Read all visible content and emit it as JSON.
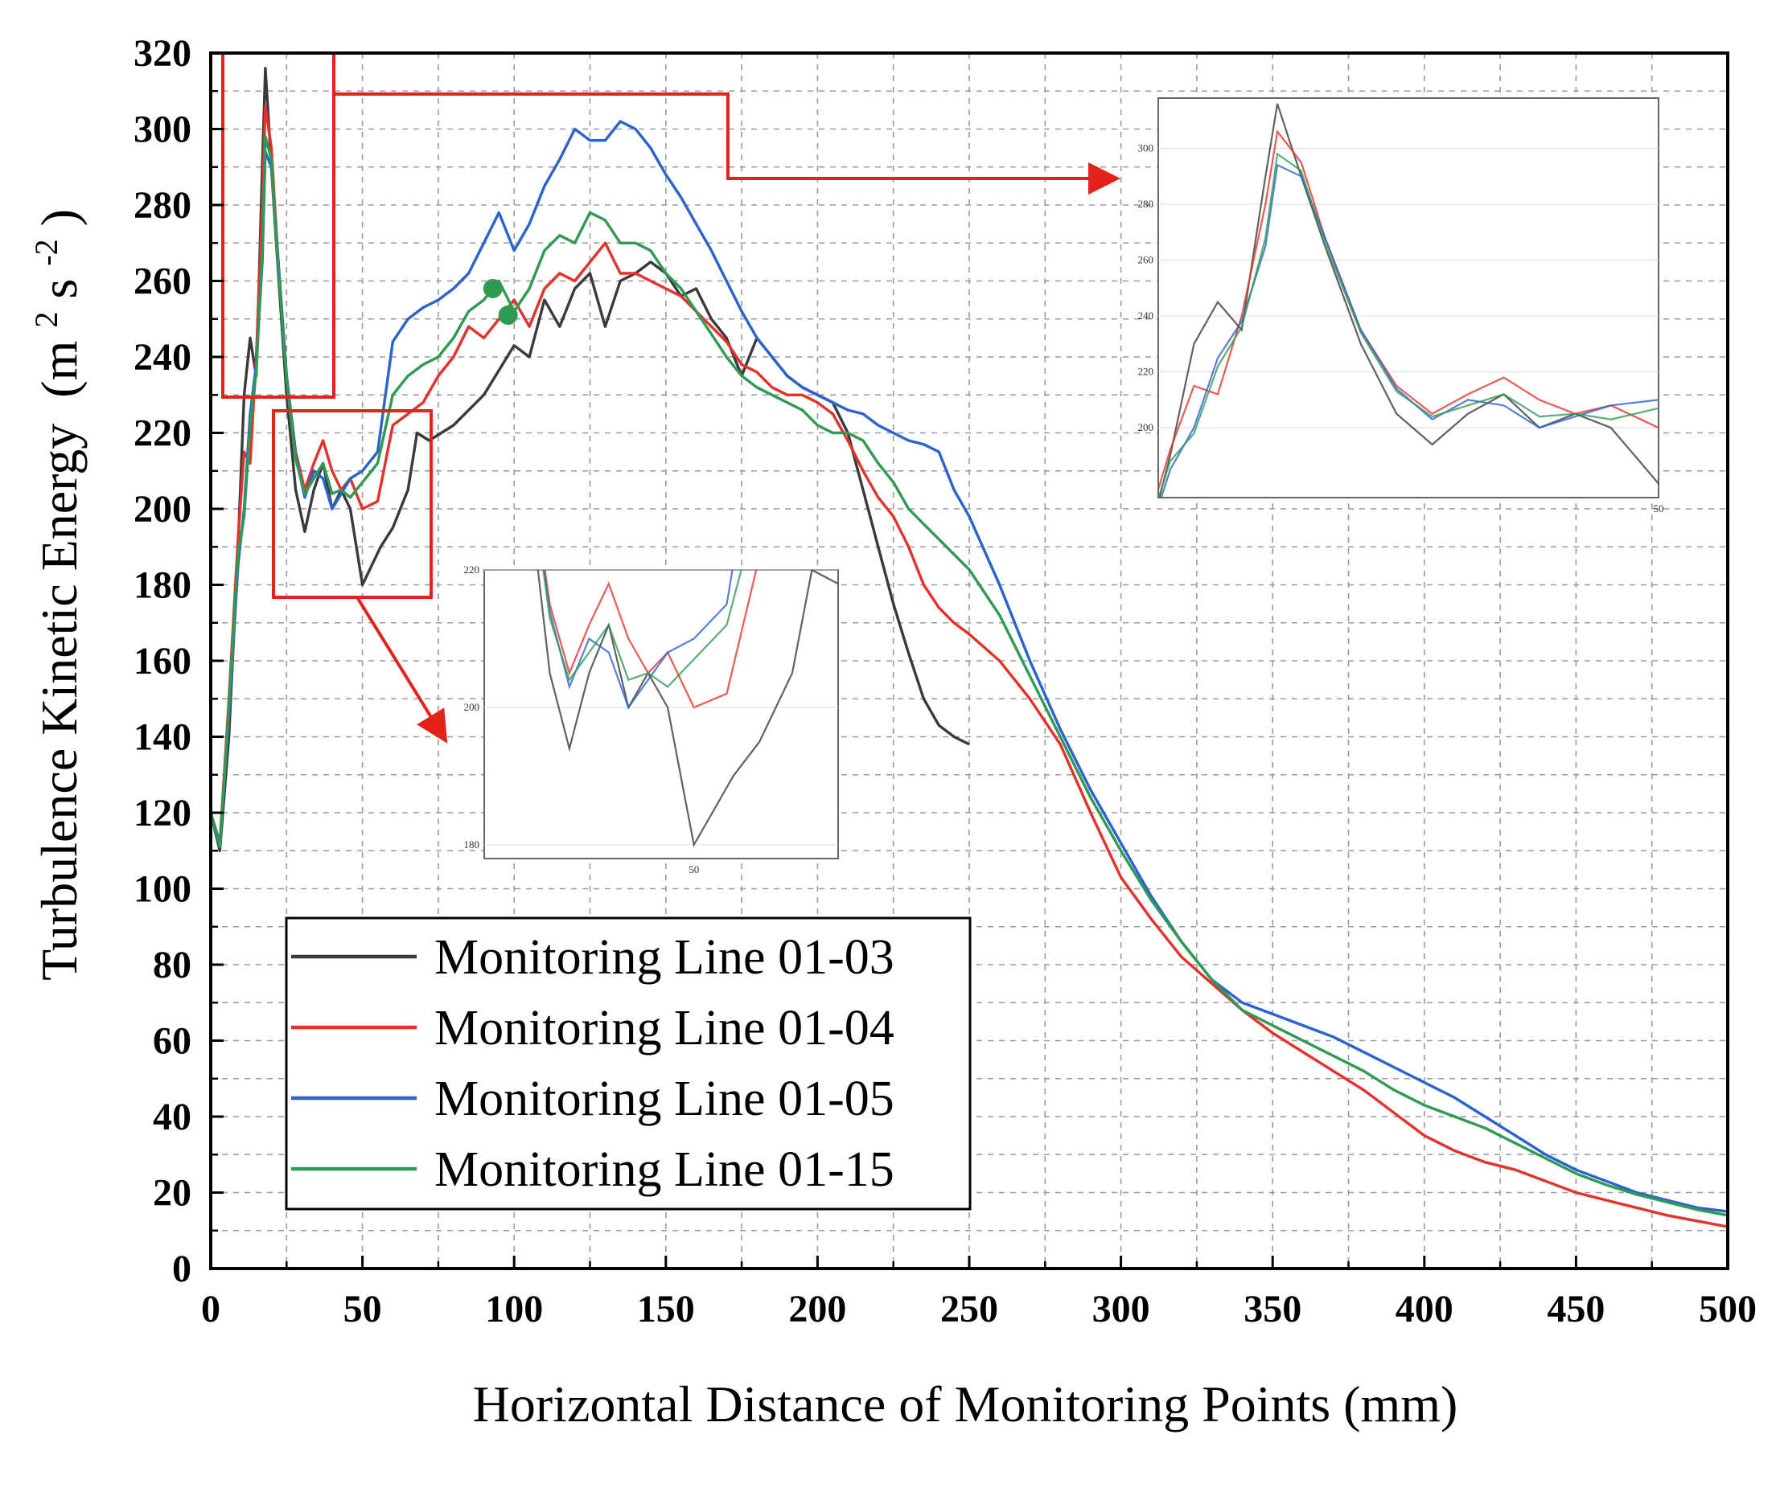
{
  "chart_data": {
    "type": "line",
    "xlabel": "Horizontal Distance of Monitoring Points (mm)",
    "ylabel": "Turbulence Kinetic Energy",
    "ylabel_unit_parts": [
      "(m",
      "2",
      " s",
      "-2",
      ")"
    ],
    "xlim": [
      0,
      500
    ],
    "ylim": [
      0,
      320
    ],
    "xticks": [
      0,
      50,
      100,
      150,
      200,
      250,
      300,
      350,
      400,
      450,
      500
    ],
    "yticks": [
      0,
      20,
      40,
      60,
      80,
      100,
      120,
      140,
      160,
      180,
      200,
      220,
      240,
      260,
      280,
      300,
      320
    ],
    "grid": true,
    "legend_position": "bottom-left",
    "series": [
      {
        "name": "Monitoring Line 01-03",
        "color": "#3a3a3a",
        "points": [
          [
            0,
            120
          ],
          [
            3,
            110
          ],
          [
            6,
            140
          ],
          [
            9,
            190
          ],
          [
            11,
            230
          ],
          [
            13,
            245
          ],
          [
            15,
            235
          ],
          [
            17,
            290
          ],
          [
            18,
            316
          ],
          [
            20,
            290
          ],
          [
            22,
            265
          ],
          [
            25,
            230
          ],
          [
            28,
            205
          ],
          [
            31,
            194
          ],
          [
            34,
            205
          ],
          [
            37,
            212
          ],
          [
            40,
            200
          ],
          [
            43,
            205
          ],
          [
            46,
            200
          ],
          [
            50,
            180
          ],
          [
            53,
            185
          ],
          [
            56,
            190
          ],
          [
            60,
            195
          ],
          [
            65,
            205
          ],
          [
            68,
            220
          ],
          [
            72,
            218
          ],
          [
            80,
            222
          ],
          [
            90,
            230
          ],
          [
            100,
            243
          ],
          [
            105,
            240
          ],
          [
            110,
            255
          ],
          [
            115,
            248
          ],
          [
            120,
            258
          ],
          [
            125,
            262
          ],
          [
            130,
            248
          ],
          [
            135,
            260
          ],
          [
            140,
            262
          ],
          [
            145,
            265
          ],
          [
            150,
            262
          ],
          [
            155,
            256
          ],
          [
            160,
            258
          ],
          [
            165,
            250
          ],
          [
            170,
            245
          ],
          [
            175,
            235
          ],
          [
            180,
            245
          ],
          [
            185,
            240
          ],
          [
            190,
            235
          ],
          [
            195,
            232
          ],
          [
            200,
            230
          ],
          [
            205,
            228
          ],
          [
            210,
            220
          ],
          [
            215,
            205
          ],
          [
            220,
            190
          ],
          [
            225,
            175
          ],
          [
            230,
            162
          ],
          [
            235,
            150
          ],
          [
            240,
            143
          ],
          [
            245,
            140
          ],
          [
            250,
            138
          ]
        ]
      },
      {
        "name": "Monitoring Line 01-04",
        "color": "#e8302a",
        "points": [
          [
            0,
            120
          ],
          [
            3,
            112
          ],
          [
            6,
            150
          ],
          [
            9,
            192
          ],
          [
            11,
            215
          ],
          [
            13,
            212
          ],
          [
            15,
            240
          ],
          [
            17,
            280
          ],
          [
            18,
            306
          ],
          [
            20,
            295
          ],
          [
            22,
            268
          ],
          [
            25,
            235
          ],
          [
            28,
            215
          ],
          [
            31,
            205
          ],
          [
            34,
            212
          ],
          [
            37,
            218
          ],
          [
            40,
            210
          ],
          [
            43,
            205
          ],
          [
            46,
            208
          ],
          [
            50,
            200
          ],
          [
            55,
            202
          ],
          [
            60,
            222
          ],
          [
            65,
            225
          ],
          [
            70,
            228
          ],
          [
            75,
            235
          ],
          [
            80,
            240
          ],
          [
            85,
            248
          ],
          [
            90,
            245
          ],
          [
            95,
            250
          ],
          [
            100,
            255
          ],
          [
            105,
            248
          ],
          [
            110,
            258
          ],
          [
            115,
            262
          ],
          [
            120,
            260
          ],
          [
            125,
            265
          ],
          [
            130,
            270
          ],
          [
            135,
            262
          ],
          [
            140,
            262
          ],
          [
            145,
            260
          ],
          [
            150,
            258
          ],
          [
            155,
            256
          ],
          [
            160,
            252
          ],
          [
            165,
            248
          ],
          [
            170,
            244
          ],
          [
            175,
            238
          ],
          [
            180,
            236
          ],
          [
            185,
            232
          ],
          [
            190,
            230
          ],
          [
            195,
            230
          ],
          [
            200,
            228
          ],
          [
            205,
            225
          ],
          [
            210,
            218
          ],
          [
            215,
            210
          ],
          [
            220,
            203
          ],
          [
            225,
            198
          ],
          [
            230,
            190
          ],
          [
            235,
            180
          ],
          [
            240,
            174
          ],
          [
            245,
            170
          ],
          [
            250,
            167
          ],
          [
            260,
            160
          ],
          [
            270,
            150
          ],
          [
            280,
            138
          ],
          [
            290,
            120
          ],
          [
            300,
            103
          ],
          [
            310,
            92
          ],
          [
            320,
            82
          ],
          [
            330,
            75
          ],
          [
            340,
            68
          ],
          [
            350,
            62
          ],
          [
            360,
            57
          ],
          [
            370,
            52
          ],
          [
            380,
            47
          ],
          [
            390,
            41
          ],
          [
            400,
            35
          ],
          [
            410,
            31
          ],
          [
            420,
            28
          ],
          [
            430,
            26
          ],
          [
            440,
            23
          ],
          [
            450,
            20
          ],
          [
            460,
            18
          ],
          [
            470,
            16
          ],
          [
            480,
            14
          ],
          [
            490,
            12.5
          ],
          [
            500,
            11
          ]
        ]
      },
      {
        "name": "Monitoring Line 01-05",
        "color": "#2a62d0",
        "points": [
          [
            0,
            120
          ],
          [
            3,
            112
          ],
          [
            6,
            145
          ],
          [
            9,
            185
          ],
          [
            11,
            200
          ],
          [
            13,
            225
          ],
          [
            15,
            238
          ],
          [
            17,
            265
          ],
          [
            18,
            294
          ],
          [
            20,
            290
          ],
          [
            22,
            268
          ],
          [
            25,
            235
          ],
          [
            28,
            214
          ],
          [
            31,
            203
          ],
          [
            34,
            210
          ],
          [
            37,
            208
          ],
          [
            40,
            200
          ],
          [
            43,
            204
          ],
          [
            46,
            208
          ],
          [
            50,
            210
          ],
          [
            55,
            215
          ],
          [
            60,
            244
          ],
          [
            65,
            250
          ],
          [
            70,
            253
          ],
          [
            75,
            255
          ],
          [
            80,
            258
          ],
          [
            85,
            262
          ],
          [
            90,
            270
          ],
          [
            95,
            278
          ],
          [
            100,
            268
          ],
          [
            105,
            275
          ],
          [
            110,
            285
          ],
          [
            115,
            292
          ],
          [
            120,
            300
          ],
          [
            125,
            297
          ],
          [
            130,
            297
          ],
          [
            135,
            302
          ],
          [
            140,
            300
          ],
          [
            145,
            295
          ],
          [
            150,
            288
          ],
          [
            155,
            282
          ],
          [
            160,
            275
          ],
          [
            165,
            268
          ],
          [
            170,
            260
          ],
          [
            175,
            252
          ],
          [
            180,
            245
          ],
          [
            185,
            240
          ],
          [
            190,
            235
          ],
          [
            195,
            232
          ],
          [
            200,
            230
          ],
          [
            205,
            228
          ],
          [
            210,
            226
          ],
          [
            215,
            225
          ],
          [
            220,
            222
          ],
          [
            225,
            220
          ],
          [
            230,
            218
          ],
          [
            235,
            217
          ],
          [
            240,
            215
          ],
          [
            245,
            205
          ],
          [
            250,
            198
          ],
          [
            260,
            180
          ],
          [
            270,
            160
          ],
          [
            280,
            142
          ],
          [
            290,
            126
          ],
          [
            300,
            112
          ],
          [
            310,
            98
          ],
          [
            320,
            86
          ],
          [
            330,
            76
          ],
          [
            340,
            70
          ],
          [
            350,
            67
          ],
          [
            360,
            64
          ],
          [
            370,
            61
          ],
          [
            380,
            57
          ],
          [
            390,
            53
          ],
          [
            400,
            49
          ],
          [
            410,
            45
          ],
          [
            420,
            40
          ],
          [
            430,
            35
          ],
          [
            440,
            30
          ],
          [
            450,
            26
          ],
          [
            460,
            23
          ],
          [
            470,
            20
          ],
          [
            480,
            18
          ],
          [
            490,
            16
          ],
          [
            500,
            15
          ]
        ]
      },
      {
        "name": "Monitoring Line 01-15",
        "color": "#2e9a52",
        "points": [
          [
            0,
            120
          ],
          [
            3,
            111
          ],
          [
            6,
            148
          ],
          [
            9,
            188
          ],
          [
            11,
            198
          ],
          [
            13,
            222
          ],
          [
            15,
            236
          ],
          [
            17,
            268
          ],
          [
            18,
            298
          ],
          [
            20,
            292
          ],
          [
            22,
            266
          ],
          [
            25,
            234
          ],
          [
            28,
            213
          ],
          [
            31,
            204
          ],
          [
            34,
            208
          ],
          [
            37,
            212
          ],
          [
            40,
            204
          ],
          [
            43,
            205
          ],
          [
            46,
            203
          ],
          [
            50,
            207
          ],
          [
            55,
            212
          ],
          [
            60,
            230
          ],
          [
            65,
            235
          ],
          [
            70,
            238
          ],
          [
            75,
            240
          ],
          [
            80,
            245
          ],
          [
            85,
            252
          ],
          [
            90,
            255
          ],
          [
            95,
            260
          ],
          [
            100,
            252
          ],
          [
            105,
            258
          ],
          [
            110,
            268
          ],
          [
            115,
            272
          ],
          [
            120,
            270
          ],
          [
            125,
            278
          ],
          [
            130,
            276
          ],
          [
            135,
            270
          ],
          [
            140,
            270
          ],
          [
            145,
            268
          ],
          [
            150,
            262
          ],
          [
            155,
            258
          ],
          [
            160,
            252
          ],
          [
            165,
            246
          ],
          [
            170,
            240
          ],
          [
            175,
            235
          ],
          [
            180,
            232
          ],
          [
            185,
            230
          ],
          [
            190,
            228
          ],
          [
            195,
            226
          ],
          [
            200,
            222
          ],
          [
            205,
            220
          ],
          [
            210,
            220
          ],
          [
            215,
            218
          ],
          [
            220,
            212
          ],
          [
            225,
            207
          ],
          [
            230,
            200
          ],
          [
            235,
            196
          ],
          [
            240,
            192
          ],
          [
            245,
            188
          ],
          [
            250,
            184
          ],
          [
            260,
            172
          ],
          [
            270,
            156
          ],
          [
            280,
            140
          ],
          [
            290,
            124
          ],
          [
            300,
            110
          ],
          [
            310,
            97
          ],
          [
            320,
            86
          ],
          [
            330,
            76
          ],
          [
            340,
            68
          ],
          [
            350,
            64
          ],
          [
            360,
            60
          ],
          [
            370,
            56
          ],
          [
            380,
            52
          ],
          [
            390,
            47
          ],
          [
            400,
            43
          ],
          [
            410,
            40
          ],
          [
            420,
            37
          ],
          [
            430,
            33
          ],
          [
            440,
            29
          ],
          [
            450,
            25
          ],
          [
            460,
            22
          ],
          [
            470,
            19.5
          ],
          [
            480,
            17.5
          ],
          [
            490,
            15.5
          ],
          [
            500,
            14
          ]
        ]
      }
    ],
    "insets": [
      {
        "name": "zoom-peak",
        "x_tick_label": "50",
        "y_tick_labels": [
          "200",
          "220",
          "240",
          "260",
          "280",
          "300"
        ]
      },
      {
        "name": "zoom-valley",
        "x_tick_label": "50",
        "y_tick_labels": [
          "180",
          "200",
          "220"
        ]
      }
    ]
  }
}
